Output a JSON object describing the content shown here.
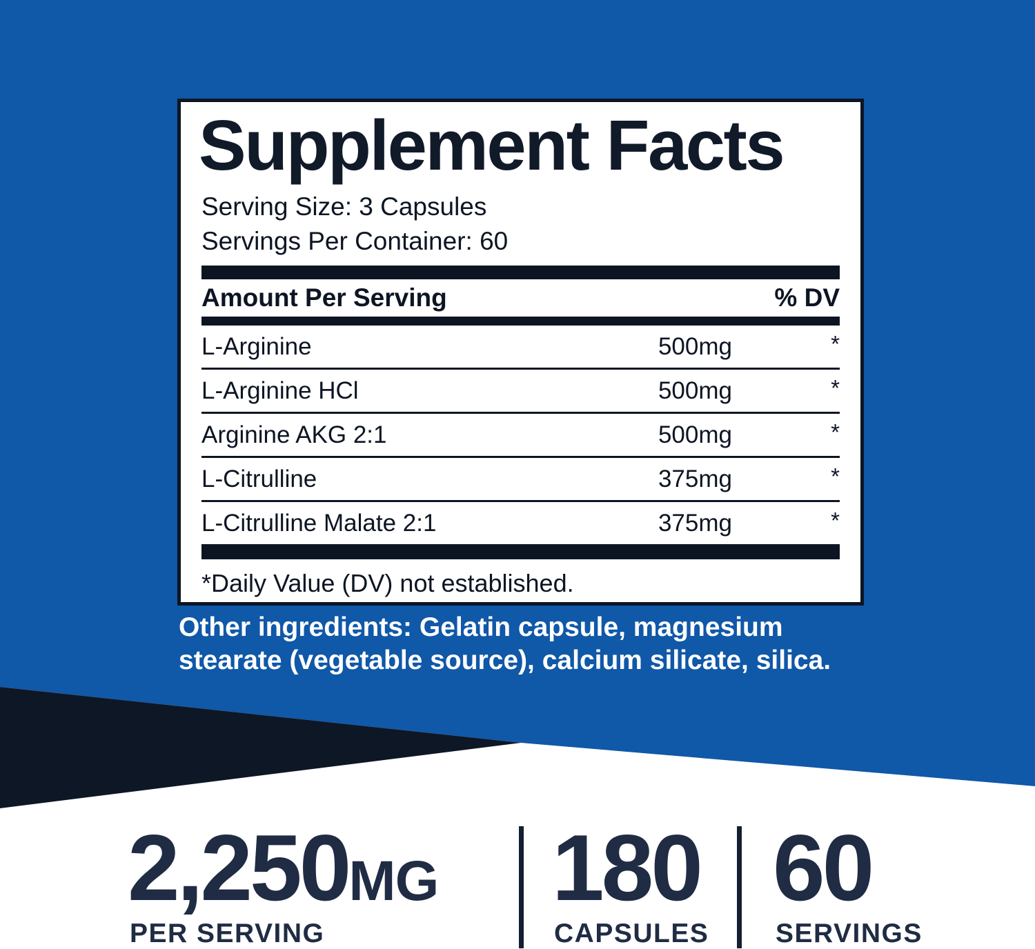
{
  "colors": {
    "background_blue": "#1058a8",
    "wedge_navy": "#0e1726",
    "panel_ink": "#0d1523",
    "stats_navy": "#202c44",
    "panel_background": "#ffffff",
    "other_ingredients_text": "#ffffff"
  },
  "panel": {
    "title": "Supplement Facts",
    "serving_size": "Serving Size: 3 Capsules",
    "servings_per_container": "Servings Per Container: 60",
    "header": {
      "amount_label": "Amount Per Serving",
      "dv_label": "% DV"
    },
    "rows": [
      {
        "name": "L-Arginine",
        "amount": "500mg",
        "dv": "*"
      },
      {
        "name": "L-Arginine HCl",
        "amount": "500mg",
        "dv": "*"
      },
      {
        "name": "Arginine AKG 2:1",
        "amount": "500mg",
        "dv": "*"
      },
      {
        "name": "L-Citrulline",
        "amount": "375mg",
        "dv": "*"
      },
      {
        "name": "L-Citrulline Malate 2:1",
        "amount": "375mg",
        "dv": "*"
      }
    ],
    "footnote": "*Daily Value (DV) not established."
  },
  "other_ingredients": "Other ingredients: Gelatin capsule, magnesium stearate (vegetable source), calcium silicate, silica.",
  "stats": [
    {
      "value": "2,250",
      "unit": "MG",
      "label": "PER SERVING"
    },
    {
      "value": "180",
      "unit": "",
      "label": "CAPSULES"
    },
    {
      "value": "60",
      "unit": "",
      "label": "SERVINGS"
    }
  ]
}
